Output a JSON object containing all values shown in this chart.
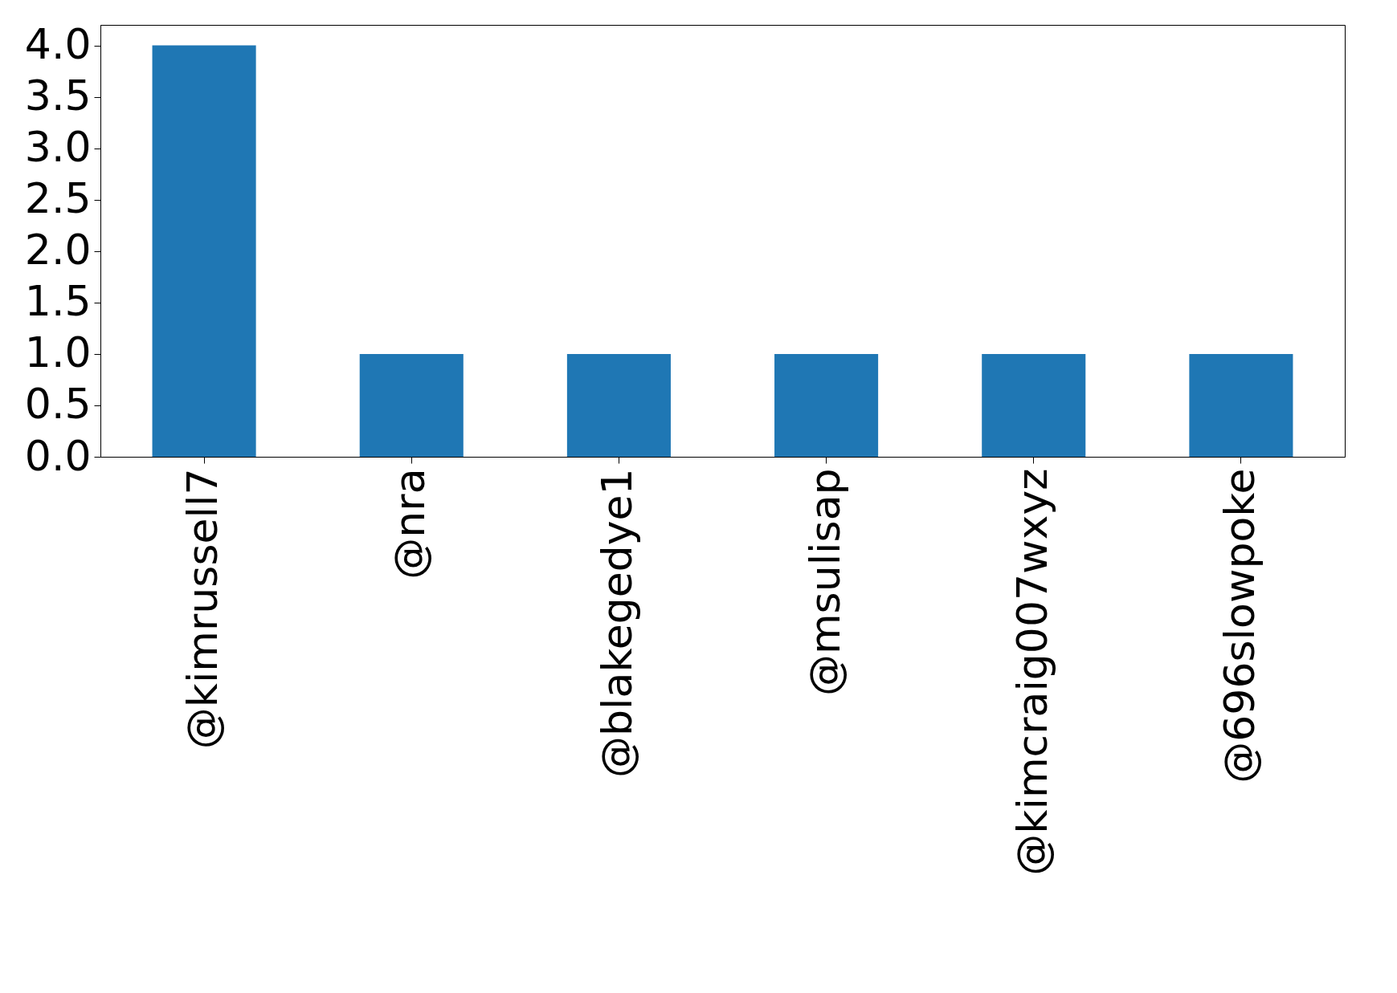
{
  "chart_data": {
    "type": "bar",
    "categories": [
      "@kimrussell7",
      "@nra",
      "@blakegedye1",
      "@msulisap",
      "@kimcraig007wxyz",
      "@696slowpoke"
    ],
    "values": [
      4,
      1,
      1,
      1,
      1,
      1
    ],
    "color": "#1f77b4",
    "ylim": [
      0,
      4.2
    ],
    "yticks": [
      {
        "value": 0,
        "label": "0.0"
      },
      {
        "value": 0.5,
        "label": "0.5"
      },
      {
        "value": 1,
        "label": "1.0"
      },
      {
        "value": 1.5,
        "label": "1.5"
      },
      {
        "value": 2,
        "label": "2.0"
      },
      {
        "value": 2.5,
        "label": "2.5"
      },
      {
        "value": 3,
        "label": "3.0"
      },
      {
        "value": 3.5,
        "label": "3.5"
      },
      {
        "value": 4,
        "label": "4.0"
      }
    ],
    "grid": false
  }
}
